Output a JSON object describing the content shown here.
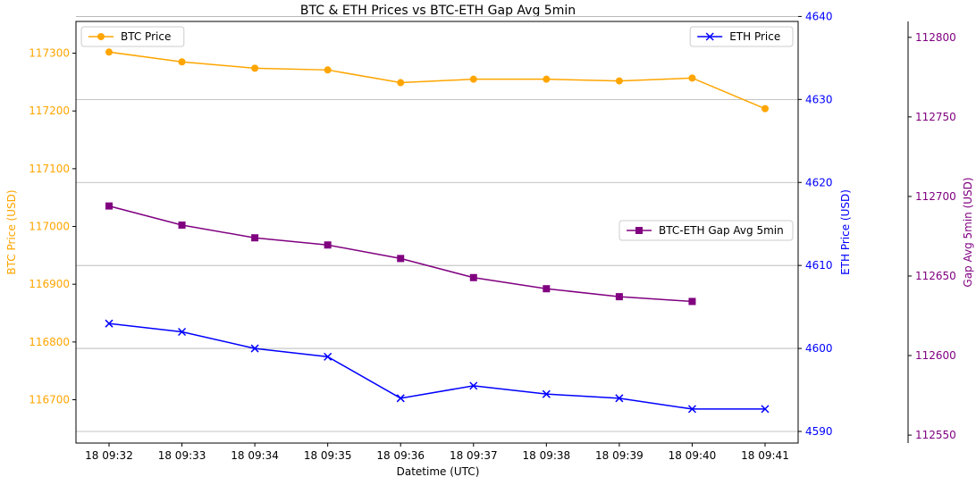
{
  "chart_data": {
    "type": "line",
    "title": "BTC & ETH Prices vs BTC-ETH Gap Avg 5min",
    "xlabel": "Datetime (UTC)",
    "x": [
      "18 09:32",
      "18 09:33",
      "18 09:34",
      "18 09:35",
      "18 09:36",
      "18 09:37",
      "18 09:38",
      "18 09:39",
      "18 09:40",
      "18 09:41"
    ],
    "axes": {
      "left": {
        "label": "BTC Price (USD)",
        "ylim": [
          116625,
          117355
        ],
        "ticks": [
          "116700",
          "116800",
          "116900",
          "117000",
          "117100",
          "117200",
          "117300"
        ],
        "color": "#FFA500"
      },
      "right": {
        "label": "ETH Price (USD)",
        "ylim": [
          4588.6,
          4639.4
        ],
        "ticks": [
          "4590",
          "4600",
          "4610",
          "4620",
          "4630",
          "4640"
        ],
        "color": "#0000FF"
      },
      "far_right": {
        "label": "Gap Avg 5min (USD)",
        "ylim": [
          112545,
          112810
        ],
        "ticks": [
          "112550",
          "112600",
          "112650",
          "112700",
          "112750",
          "112800"
        ],
        "color": "#800080"
      }
    },
    "series": [
      {
        "name": "BTC Price",
        "axis": "left",
        "color": "#FFA500",
        "marker": "circle",
        "values": [
          117302,
          117285,
          117274,
          117271,
          117249,
          117255,
          117255,
          117252,
          117257,
          117204
        ]
      },
      {
        "name": "ETH Price",
        "axis": "right",
        "color": "#0000FF",
        "marker": "x",
        "values": [
          4603.0,
          4602.0,
          4600.0,
          4599.0,
          4594.0,
          4595.5,
          4594.5,
          4594.0,
          4592.7,
          4592.7
        ]
      },
      {
        "name": "BTC-ETH Gap Avg 5min",
        "axis": "far_right",
        "color": "#800080",
        "marker": "square",
        "values": [
          112694,
          112682,
          112674,
          112669.5,
          112661,
          112649,
          112642,
          112637,
          112634,
          null
        ]
      }
    ],
    "gridlines_y": "ETH axis",
    "grid": true,
    "legends": [
      {
        "series": "BTC Price",
        "placement": "upper-left"
      },
      {
        "series": "ETH Price",
        "placement": "upper-right"
      },
      {
        "series": "BTC-ETH Gap Avg 5min",
        "placement": "center-right"
      }
    ]
  }
}
